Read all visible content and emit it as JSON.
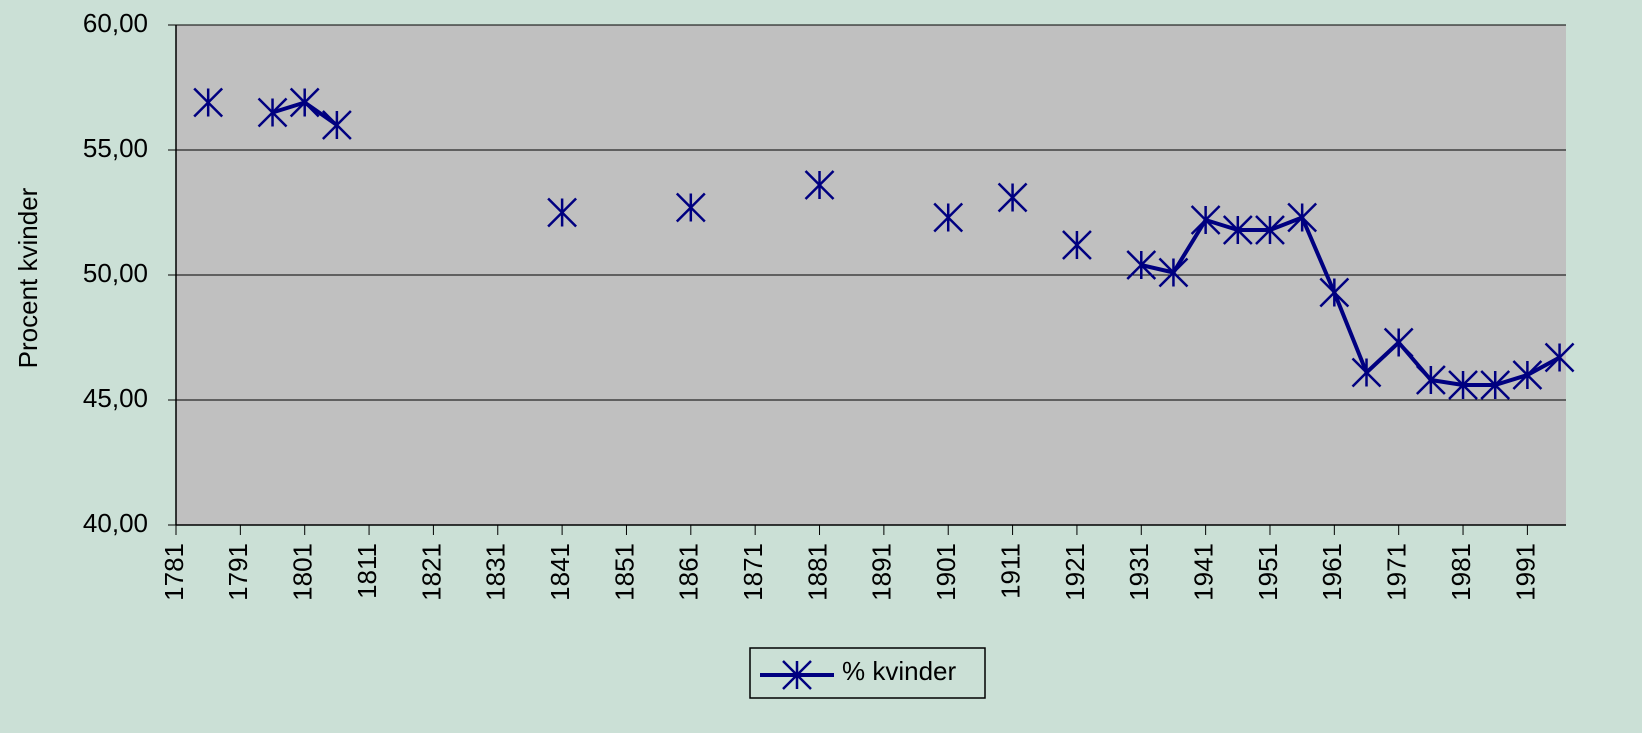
{
  "chart_data": {
    "type": "line",
    "y_label": "Procent kvinder",
    "x": [
      1786,
      1791,
      1796,
      1801,
      1806,
      1811,
      1816,
      1821,
      1826,
      1831,
      1836,
      1841,
      1846,
      1851,
      1856,
      1861,
      1866,
      1871,
      1876,
      1881,
      1886,
      1891,
      1896,
      1901,
      1906,
      1911,
      1916,
      1921,
      1926,
      1931,
      1936,
      1941,
      1946,
      1951,
      1956,
      1961,
      1966,
      1971,
      1976,
      1981,
      1986,
      1991,
      1996
    ],
    "series": [
      {
        "name": "% kvinder",
        "color": "#000080",
        "values": [
          56.9,
          null,
          56.5,
          56.9,
          56.0,
          null,
          null,
          null,
          null,
          null,
          null,
          52.5,
          null,
          null,
          null,
          52.7,
          null,
          null,
          null,
          53.6,
          null,
          null,
          null,
          52.3,
          null,
          53.1,
          null,
          51.2,
          null,
          50.4,
          50.1,
          52.2,
          51.8,
          51.8,
          52.3,
          49.3,
          46.1,
          47.3,
          45.8,
          45.6,
          45.6,
          46.0,
          46.7
        ]
      }
    ],
    "xlim": [
      1781,
      1997
    ],
    "xticks": [
      1781,
      1791,
      1801,
      1811,
      1821,
      1831,
      1841,
      1851,
      1861,
      1871,
      1881,
      1891,
      1901,
      1911,
      1921,
      1931,
      1941,
      1951,
      1961,
      1971,
      1981,
      1991
    ],
    "ylim": [
      40,
      60
    ],
    "yticks": [
      {
        "value": 40,
        "label": "40,00"
      },
      {
        "value": 45,
        "label": "45,00"
      },
      {
        "value": 50,
        "label": "50,00"
      },
      {
        "value": 55,
        "label": "55,00"
      },
      {
        "value": 60,
        "label": "60,00"
      }
    ],
    "grid": true,
    "legend": "bottom",
    "plot_background": "#c0c0c0"
  }
}
